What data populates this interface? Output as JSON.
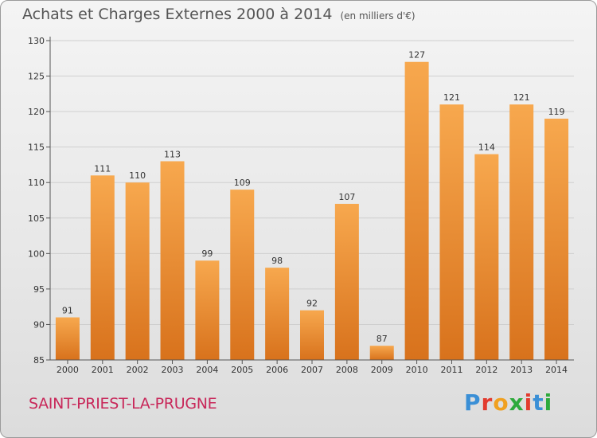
{
  "header": {
    "title": "Achats et Charges Externes 2000 à 2014",
    "unit": "(en milliers d'€)"
  },
  "footer": {
    "commune": "SAINT-PRIEST-LA-PRUGNE",
    "brand": "Proxiti",
    "brand_colors": [
      "#3a8fd6",
      "#e23b2e",
      "#f0a020",
      "#2eaa3c",
      "#e23b2e",
      "#3a8fd6",
      "#2eaa3c"
    ]
  },
  "colors": {
    "bar_light": "#f7a84e",
    "bar_dark": "#d8721c",
    "axis": "#555555",
    "grid": "#cfcfcf"
  },
  "chart_data": {
    "type": "bar",
    "title": "Achats et Charges Externes 2000 à 2014",
    "ylabel": "",
    "xlabel": "",
    "categories": [
      "2000",
      "2001",
      "2002",
      "2003",
      "2004",
      "2005",
      "2006",
      "2007",
      "2008",
      "2009",
      "2010",
      "2011",
      "2012",
      "2013",
      "2014"
    ],
    "values": [
      91,
      111,
      110,
      113,
      99,
      109,
      98,
      92,
      107,
      87,
      127,
      121,
      114,
      121,
      119
    ],
    "ylim": [
      85,
      130
    ],
    "yticks": [
      85,
      90,
      95,
      100,
      105,
      110,
      115,
      120,
      125,
      130
    ],
    "grid": true,
    "legend": "none"
  }
}
